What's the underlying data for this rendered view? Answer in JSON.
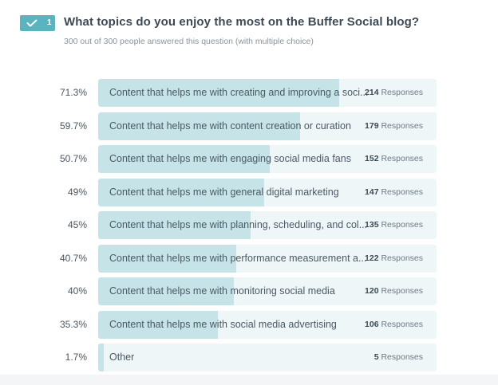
{
  "question": {
    "number": "1",
    "title": "What topics do you enjoy the most on the Buffer Social blog?",
    "subtitle": "300 out of 300 people answered this question (with multiple choice)",
    "badge_color": "#5bb3c0",
    "status_icon": "check-icon"
  },
  "responses_label": "Responses",
  "rows": [
    {
      "pct": "71.3%",
      "label": "Content that helps me with creating and improving a soci...",
      "count": "214",
      "value": 71.3
    },
    {
      "pct": "59.7%",
      "label": "Content that helps me with content creation or curation",
      "count": "179",
      "value": 59.7
    },
    {
      "pct": "50.7%",
      "label": "Content that helps me with engaging social media fans",
      "count": "152",
      "value": 50.7
    },
    {
      "pct": "49%",
      "label": "Content that helps me with general digital marketing",
      "count": "147",
      "value": 49
    },
    {
      "pct": "45%",
      "label": "Content that helps me with planning, scheduling, and col...",
      "count": "135",
      "value": 45
    },
    {
      "pct": "40.7%",
      "label": "Content that helps me with performance measurement a...",
      "count": "122",
      "value": 40.7
    },
    {
      "pct": "40%",
      "label": "Content that helps me with monitoring social media",
      "count": "120",
      "value": 40
    },
    {
      "pct": "35.3%",
      "label": "Content that helps me with social media advertising",
      "count": "106",
      "value": 35.3
    },
    {
      "pct": "1.7%",
      "label": "Other",
      "count": "5",
      "value": 1.7
    }
  ],
  "colors": {
    "bar_fill": "#c6e3e8",
    "bar_track": "#eef6f8",
    "accent": "#5bb3c0"
  },
  "chart_data": {
    "type": "bar",
    "orientation": "horizontal",
    "title": "What topics do you enjoy the most on the Buffer Social blog?",
    "subtitle": "300 out of 300 people answered this question (with multiple choice)",
    "categories": [
      "Content that helps me with creating and improving a soci...",
      "Content that helps me with content creation or curation",
      "Content that helps me with engaging social media fans",
      "Content that helps me with general digital marketing",
      "Content that helps me with planning, scheduling, and col...",
      "Content that helps me with performance measurement a...",
      "Content that helps me with monitoring social media",
      "Content that helps me with social media advertising",
      "Other"
    ],
    "series": [
      {
        "name": "Percent",
        "values": [
          71.3,
          59.7,
          50.7,
          49,
          45,
          40.7,
          40,
          35.3,
          1.7
        ]
      },
      {
        "name": "Responses",
        "values": [
          214,
          179,
          152,
          147,
          135,
          122,
          120,
          106,
          5
        ]
      }
    ],
    "xlabel": "",
    "ylabel": "",
    "xlim": [
      0,
      100
    ],
    "grid": false,
    "legend": "none"
  }
}
